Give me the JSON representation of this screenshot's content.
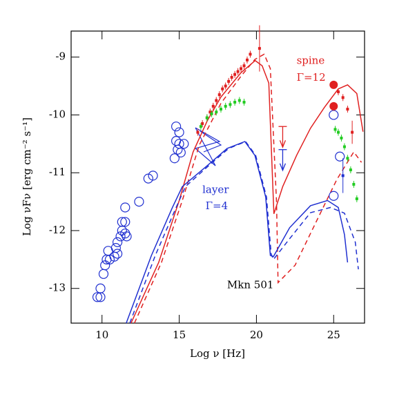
{
  "chart_data": {
    "type": "scatter",
    "xlabel": "Log ν [Hz]",
    "ylabel": "Log νFν [erg cm⁻² s⁻¹]",
    "xlim": [
      8,
      27
    ],
    "ylim": [
      -13.6,
      -8.55
    ],
    "xticks": [
      10,
      15,
      20,
      25
    ],
    "yticks": [
      -13,
      -12,
      -11,
      -10,
      -9
    ],
    "annotations": [
      {
        "text": "spine",
        "x": 22.6,
        "y": -9.07,
        "color": "#e02020"
      },
      {
        "text": "Γ=12",
        "x": 22.6,
        "y": -9.36,
        "color": "#e02020"
      },
      {
        "text": "layer",
        "x": 16.5,
        "y": -11.3,
        "color": "#1f2fd0"
      },
      {
        "text": "Γ=4",
        "x": 16.7,
        "y": -11.58,
        "color": "#1f2fd0"
      },
      {
        "text": "Mkn 501",
        "x": 18.1,
        "y": -12.95,
        "color": "#000000"
      }
    ],
    "series": [
      {
        "style": "solid",
        "color": "#e02020",
        "x": [
          11.88,
          13.67,
          15.0,
          15.9,
          16.8,
          17.7,
          19.0,
          19.92,
          20.37,
          20.8,
          21.13,
          21.7,
          22.6,
          23.5,
          24.4,
          25.3,
          25.9,
          26.5,
          26.9
        ],
        "values": [
          -13.6,
          -12.55,
          -11.48,
          -10.64,
          -10.11,
          -9.69,
          -9.27,
          -9.06,
          -9.15,
          -9.45,
          -11.71,
          -11.24,
          -10.7,
          -10.23,
          -9.87,
          -9.55,
          -9.48,
          -9.63,
          -10.29
        ]
      },
      {
        "style": "dashed",
        "color": "#e02020",
        "x": [
          12.1,
          13.85,
          15.2,
          16.3,
          17.7,
          19.0,
          19.9,
          20.5,
          20.9,
          21.3,
          21.4,
          22.5,
          23.9,
          25.2,
          26.3,
          26.8
        ],
        "values": [
          -13.6,
          -12.55,
          -11.48,
          -10.52,
          -9.8,
          -9.33,
          -9.04,
          -8.95,
          -9.2,
          -11.5,
          -12.9,
          -12.6,
          -11.83,
          -11.12,
          -10.64,
          -10.82
        ]
      },
      {
        "style": "solid",
        "color": "#1f2fd0",
        "x": [
          11.57,
          13.2,
          14.56,
          15.2,
          16.8,
          18.1,
          19.25,
          19.9,
          20.6,
          20.9,
          21.1,
          22.15,
          23.5,
          24.6,
          25.3,
          25.7,
          25.9
        ],
        "values": [
          -13.6,
          -12.43,
          -11.6,
          -11.24,
          -10.88,
          -10.58,
          -10.46,
          -10.7,
          -11.42,
          -12.43,
          -12.45,
          -11.95,
          -11.57,
          -11.48,
          -11.6,
          -12.07,
          -12.55
        ]
      },
      {
        "style": "dashed",
        "color": "#1f2fd0",
        "x": [
          11.8,
          13.45,
          14.8,
          15.4,
          16.9,
          18.2,
          19.3,
          19.95,
          20.65,
          20.95,
          21.1,
          22.15,
          23.5,
          24.8,
          25.7,
          26.4,
          26.6
        ],
        "values": [
          -13.6,
          -12.43,
          -11.6,
          -11.24,
          -10.88,
          -10.58,
          -10.46,
          -10.7,
          -11.42,
          -12.4,
          -12.5,
          -12.14,
          -11.69,
          -11.6,
          -11.7,
          -12.2,
          -12.67
        ]
      },
      {
        "style": "open-circle",
        "color": "#1f2fd0",
        "x": [
          9.7,
          9.9,
          9.9,
          10.1,
          10.2,
          10.3,
          10.4,
          10.5,
          10.8,
          10.9,
          11.0,
          11.0,
          11.2,
          11.3,
          11.3,
          11.5,
          11.5,
          11.6,
          11.5,
          12.4,
          13.0,
          13.3,
          14.8,
          14.8,
          14.7,
          15.0,
          15.1,
          15.3,
          14.9,
          15.0,
          25.0,
          25.0,
          25.4
        ],
        "values": [
          -13.15,
          -13.15,
          -13.0,
          -12.75,
          -12.6,
          -12.5,
          -12.35,
          -12.5,
          -12.45,
          -12.3,
          -12.4,
          -12.2,
          -12.1,
          -12.0,
          -11.85,
          -11.85,
          -11.6,
          -12.1,
          -12.05,
          -11.5,
          -11.1,
          -11.05,
          -10.2,
          -10.45,
          -10.75,
          -10.5,
          -10.65,
          -10.5,
          -10.6,
          -10.3,
          -10.0,
          -11.4,
          -10.72
        ]
      },
      {
        "style": "filled-circle",
        "color": "#e02020",
        "x": [
          25.0,
          25.0
        ],
        "values": [
          -9.48,
          -9.85
        ]
      },
      {
        "style": "point",
        "color": "#e02020",
        "x": [
          16.2,
          16.5,
          16.8,
          17.0,
          17.2,
          17.4,
          17.6,
          17.8,
          18.0,
          18.2,
          18.4,
          18.6,
          18.8,
          19.0,
          19.2,
          19.4,
          19.6,
          25.3,
          25.6,
          25.9
        ],
        "values": [
          -10.3,
          -10.15,
          -10.05,
          -9.95,
          -9.85,
          -9.75,
          -9.65,
          -9.55,
          -9.5,
          -9.42,
          -9.35,
          -9.3,
          -9.25,
          -9.2,
          -9.15,
          -9.05,
          -8.95,
          -9.6,
          -9.7,
          -9.9
        ]
      },
      {
        "style": "point",
        "color": "#22cc22",
        "x": [
          16.4,
          16.8,
          17.1,
          17.4,
          17.7,
          18.0,
          18.3,
          18.6,
          18.9,
          19.2,
          25.1,
          25.3,
          25.5,
          25.7,
          25.9,
          26.1,
          26.3,
          26.5
        ],
        "values": [
          -10.2,
          -10.05,
          -9.98,
          -9.95,
          -9.9,
          -9.85,
          -9.82,
          -9.78,
          -9.75,
          -9.78,
          -10.25,
          -10.3,
          -10.4,
          -10.55,
          -10.75,
          -10.95,
          -11.2,
          -11.45
        ]
      },
      {
        "style": "errorbar",
        "color": "#e02020",
        "x": [
          20.2,
          26.2
        ],
        "values": [
          -8.85,
          -10.3
        ],
        "errors": [
          0.4,
          0.2
        ]
      },
      {
        "style": "errorbar",
        "color": "#1f2fd0",
        "x": [
          25.6
        ],
        "values": [
          -11.05
        ],
        "errors": [
          0.3
        ]
      },
      {
        "style": "upper-limit",
        "color": "#e02020",
        "x": [
          21.7
        ],
        "values": [
          -10.2
        ]
      },
      {
        "style": "upper-limit",
        "color": "#1f2fd0",
        "x": [
          21.7
        ],
        "values": [
          -10.6
        ]
      }
    ]
  }
}
